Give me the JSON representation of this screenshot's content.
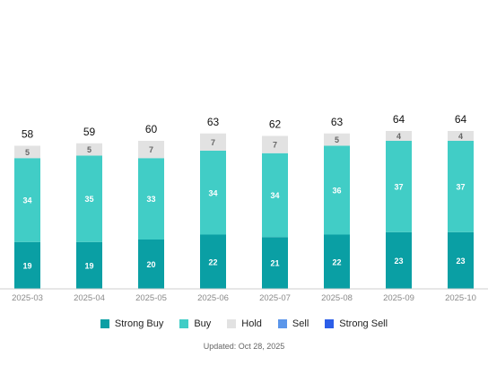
{
  "chart_data": {
    "type": "bar",
    "stacked": true,
    "categories": [
      "2025-03",
      "2025-04",
      "2025-05",
      "2025-06",
      "2025-07",
      "2025-08",
      "2025-09",
      "2025-10"
    ],
    "series": [
      {
        "name": "Strong Buy",
        "color": "#0a9fa4",
        "values": [
          19,
          19,
          20,
          22,
          21,
          22,
          23,
          23
        ]
      },
      {
        "name": "Buy",
        "color": "#41cdc6",
        "values": [
          34,
          35,
          33,
          34,
          34,
          36,
          37,
          37
        ]
      },
      {
        "name": "Hold",
        "color": "#e2e2e2",
        "values": [
          5,
          5,
          7,
          7,
          7,
          5,
          4,
          4
        ]
      },
      {
        "name": "Sell",
        "color": "#5b96ea",
        "values": [
          0,
          0,
          0,
          0,
          0,
          0,
          0,
          0
        ]
      },
      {
        "name": "Strong Sell",
        "color": "#2c5ee8",
        "values": [
          0,
          0,
          0,
          0,
          0,
          0,
          0,
          0
        ]
      }
    ],
    "totals": [
      58,
      59,
      60,
      63,
      62,
      63,
      64,
      64
    ],
    "legend_position": "bottom",
    "grid": false
  },
  "footer": {
    "updated": "Updated: Oct 28, 2025"
  }
}
